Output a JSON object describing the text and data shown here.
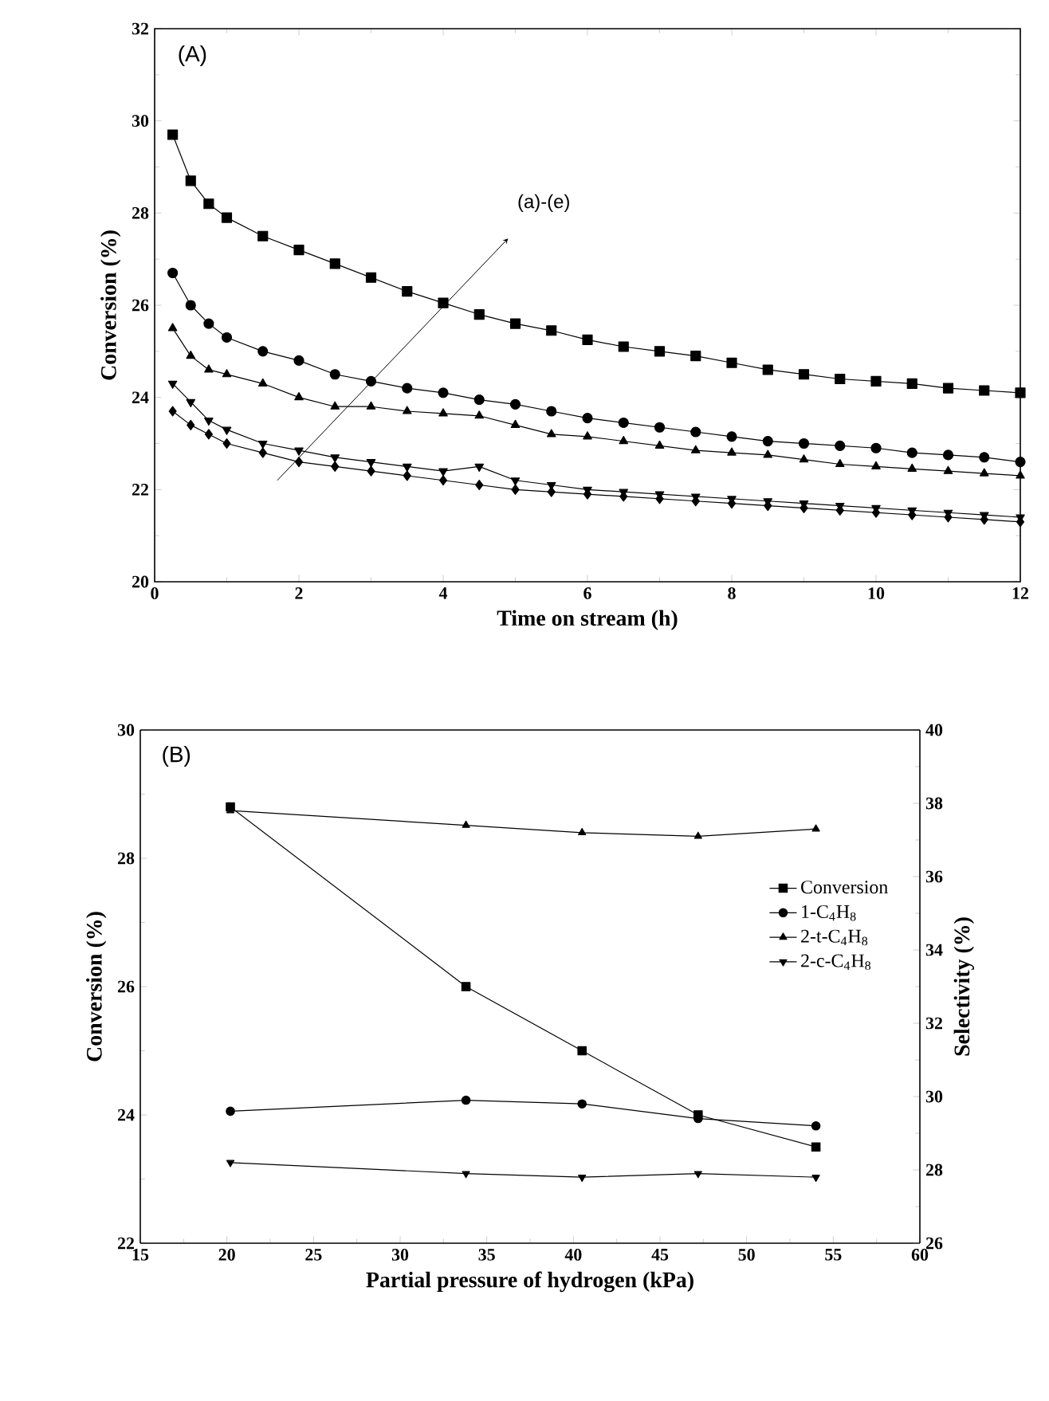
{
  "chart_data": [
    {
      "type": "line",
      "xlabel": "Time on stream (h)",
      "ylabel": "Conversion (%)",
      "annotations": [
        "(A)",
        "(a)-(e)"
      ],
      "xlim": [
        0,
        12
      ],
      "xticks": [
        0,
        2,
        4,
        6,
        8,
        10,
        12
      ],
      "ylim": [
        20,
        32
      ],
      "yticks": [
        20,
        22,
        24,
        26,
        28,
        30,
        32
      ],
      "line_style": "solid",
      "x": [
        0.25,
        0.5,
        0.75,
        1,
        1.5,
        2,
        2.5,
        3,
        3.5,
        4,
        4.5,
        5,
        5.5,
        6,
        6.5,
        7,
        7.5,
        8,
        8.5,
        9,
        9.5,
        10,
        10.5,
        11,
        11.5,
        12
      ],
      "series": [
        {
          "color": "#000000",
          "marker": "square",
          "values": [
            29.7,
            28.7,
            28.2,
            27.9,
            27.5,
            27.2,
            26.9,
            26.6,
            26.3,
            26.05,
            25.8,
            25.6,
            25.45,
            25.25,
            25.1,
            25.0,
            24.9,
            24.75,
            24.6,
            24.5,
            24.4,
            24.35,
            24.3,
            24.2,
            24.15,
            24.1
          ]
        },
        {
          "color": "#000000",
          "marker": "circle",
          "values": [
            26.7,
            26.0,
            25.6,
            25.3,
            25.0,
            24.8,
            24.5,
            24.35,
            24.2,
            24.1,
            23.95,
            23.85,
            23.7,
            23.55,
            23.45,
            23.35,
            23.25,
            23.15,
            23.05,
            23.0,
            22.95,
            22.9,
            22.8,
            22.75,
            22.7,
            22.6
          ]
        },
        {
          "color": "#000000",
          "marker": "triangle",
          "values": [
            25.5,
            24.9,
            24.6,
            24.5,
            24.3,
            24.0,
            23.8,
            23.8,
            23.7,
            23.65,
            23.6,
            23.4,
            23.2,
            23.15,
            23.05,
            22.95,
            22.85,
            22.8,
            22.75,
            22.65,
            22.55,
            22.5,
            22.45,
            22.4,
            22.35,
            22.3
          ]
        },
        {
          "color": "#000000",
          "marker": "triangle-down",
          "values": [
            24.3,
            23.9,
            23.5,
            23.3,
            23.0,
            22.85,
            22.7,
            22.6,
            22.5,
            22.4,
            22.5,
            22.2,
            22.1,
            22.0,
            21.95,
            21.9,
            21.85,
            21.8,
            21.75,
            21.7,
            21.65,
            21.6,
            21.55,
            21.5,
            21.45,
            21.4
          ]
        },
        {
          "color": "#000000",
          "marker": "diamond",
          "values": [
            23.7,
            23.4,
            23.2,
            23.0,
            22.8,
            22.6,
            22.5,
            22.4,
            22.3,
            22.2,
            22.1,
            22.0,
            21.95,
            21.9,
            21.85,
            21.8,
            21.75,
            21.7,
            21.65,
            21.6,
            21.55,
            21.5,
            21.45,
            21.4,
            21.35,
            21.3
          ]
        }
      ]
    },
    {
      "type": "line",
      "xlabel": "Partial pressure of hydrogen (kPa)",
      "ylabel": "Conversion (%)",
      "y2label": "Selectivity (%)",
      "annotations": [
        "(B)"
      ],
      "legend": "right",
      "line_style": "solid",
      "xlim": [
        15,
        60
      ],
      "xticks": [
        15,
        20,
        25,
        30,
        35,
        40,
        45,
        50,
        55,
        60
      ],
      "ylim": [
        22,
        30
      ],
      "yticks": [
        22,
        24,
        26,
        28,
        30
      ],
      "y2lim": [
        26,
        40
      ],
      "y2ticks": [
        26,
        28,
        30,
        32,
        34,
        36,
        38,
        40
      ],
      "x": [
        20.2,
        33.8,
        40.5,
        47.2,
        54
      ],
      "series": [
        {
          "name": "Conversion",
          "color": "#000000",
          "marker": "square",
          "values": [
            28.8,
            26.0,
            25.0,
            24.0,
            23.5
          ]
        },
        {
          "name": "1-C$_{4}$H$_{8}$",
          "color": "#000000",
          "marker": "circle",
          "axis": "y2",
          "values": [
            29.6,
            29.9,
            29.8,
            29.4,
            29.2
          ]
        },
        {
          "name": "2-t-C$_{4}$H$_{8}$",
          "color": "#000000",
          "marker": "triangle",
          "axis": "y2",
          "values": [
            37.8,
            37.4,
            37.2,
            37.1,
            37.3
          ]
        },
        {
          "name": "2-c-C$_{4}$H$_{8}$",
          "color": "#000000",
          "marker": "triangle-down",
          "axis": "y2",
          "values": [
            28.2,
            27.9,
            27.8,
            27.9,
            27.8
          ]
        }
      ]
    }
  ]
}
